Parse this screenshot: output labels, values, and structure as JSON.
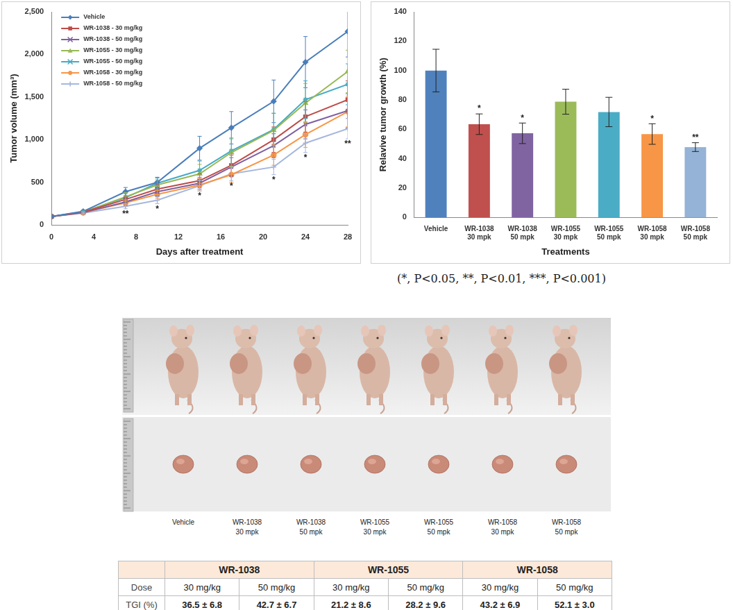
{
  "chart_data": [
    {
      "type": "line",
      "x_label": "Days after treatment",
      "y_label": "Tumor volume (mm³)",
      "x": [
        0,
        3,
        7,
        10,
        14,
        17,
        21,
        24,
        28
      ],
      "xlim": [
        0,
        28
      ],
      "xticks": [
        0,
        4,
        8,
        12,
        16,
        20,
        24,
        28
      ],
      "ylim": [
        0,
        2500
      ],
      "yticks": [
        0,
        500,
        {
          "value": 1000,
          "label": "1,000"
        },
        {
          "value": 1500,
          "label": "1,500"
        },
        {
          "value": 2000,
          "label": "2,000"
        },
        {
          "value": 2500,
          "label": "2,500"
        }
      ],
      "grid": false,
      "legend": "upper left",
      "series": [
        {
          "name": "Vehicle",
          "color": "#4a7ebb",
          "marker": "diamond",
          "values": [
            100,
            160,
            390,
            500,
            900,
            1140,
            1450,
            1910,
            2270
          ],
          "errors": [
            0,
            15,
            50,
            60,
            140,
            190,
            250,
            300,
            300
          ]
        },
        {
          "name": "WR-1038 - 30 mg/kg",
          "color": "#be4b48",
          "marker": "square",
          "values": [
            100,
            150,
            300,
            420,
            520,
            700,
            1000,
            1270,
            1470
          ],
          "errors": [
            0,
            10,
            40,
            50,
            80,
            120,
            150,
            180,
            220
          ]
        },
        {
          "name": "WR-1038 - 50 mg/kg",
          "color": "#7e60a0",
          "marker": "x",
          "values": [
            100,
            145,
            270,
            390,
            490,
            680,
            930,
            1180,
            1340
          ],
          "errors": [
            0,
            10,
            40,
            50,
            70,
            110,
            140,
            170,
            200
          ]
        },
        {
          "name": "WR-1055 - 30 mg/kg",
          "color": "#98b954",
          "marker": "triangle",
          "values": [
            100,
            150,
            330,
            470,
            600,
            850,
            1110,
            1430,
            1800
          ],
          "errors": [
            0,
            15,
            50,
            60,
            110,
            160,
            200,
            230,
            250
          ]
        },
        {
          "name": "WR-1055 - 50 mg/kg",
          "color": "#46aac5",
          "marker": "star",
          "values": [
            100,
            155,
            320,
            490,
            640,
            870,
            1120,
            1470,
            1650
          ],
          "errors": [
            0,
            15,
            50,
            60,
            110,
            150,
            190,
            220,
            240
          ]
        },
        {
          "name": "WR-1058 - 30 mg/kg",
          "color": "#f79646",
          "marker": "circle",
          "values": [
            100,
            145,
            260,
            360,
            470,
            590,
            820,
            1060,
            1330
          ],
          "errors": [
            0,
            10,
            35,
            45,
            70,
            90,
            120,
            150,
            180
          ]
        },
        {
          "name": "WR-1058 - 50 mg/kg",
          "color": "#a5b7de",
          "marker": "plus",
          "values": [
            100,
            140,
            220,
            290,
            460,
            600,
            680,
            960,
            1130
          ],
          "errors": [
            0,
            10,
            30,
            40,
            60,
            80,
            90,
            110,
            120
          ],
          "significance": [
            null,
            null,
            "**",
            "*",
            "*",
            "*",
            "*",
            "*",
            "**"
          ]
        }
      ]
    },
    {
      "type": "bar",
      "x_label": "Treatments",
      "y_label": "Relavive tumor growth (%)",
      "categories": [
        "Vehicle",
        "WR-1038 30 mpk",
        "WR-1038 50 mpk",
        "WR-1055 30 mpk",
        "WR-1055 50 mpk",
        "WR-1058 30 mpk",
        "WR-1058 50 mpk"
      ],
      "values": [
        100,
        63.5,
        57.3,
        78.8,
        71.8,
        56.8,
        47.9
      ],
      "errors": [
        14.5,
        7,
        7,
        8.5,
        10,
        7,
        3
      ],
      "significance": [
        null,
        "*",
        "*",
        null,
        null,
        "*",
        "**"
      ],
      "colors": [
        "#4f81bd",
        "#c0504d",
        "#8064a2",
        "#9bbb59",
        "#4bacc6",
        "#f79646",
        "#95b3d7"
      ],
      "ylim": [
        0,
        140
      ],
      "yticks": [
        0,
        20,
        40,
        60,
        80,
        100,
        120,
        140
      ],
      "grid": false
    }
  ],
  "significance_note": "(*, P<0.05, **, P<0.01, ***, P<0.001)",
  "photo_labels": [
    "Vehicle",
    "WR-1038 30 mpk",
    "WR-1038 50 mpk",
    "WR-1055 30 mpk",
    "WR-1055 50 mpk",
    "WR-1058 30 mpk",
    "WR-1058 50 mpk"
  ],
  "table": {
    "groups": [
      "WR-1038",
      "WR-1055",
      "WR-1058"
    ],
    "rows": [
      {
        "label": "Dose",
        "cells": [
          "30 mg/kg",
          "50 mg/kg",
          "30 mg/kg",
          "50 mg/kg",
          "30 mg/kg",
          "50 mg/kg"
        ]
      },
      {
        "label": "TGI (%)",
        "cells": [
          "36.5 ± 6.8",
          "42.7 ± 6.7",
          "21.2 ± 8.6",
          "28.2 ± 9.6",
          "43.2 ± 6.9",
          "52.1 ± 3.0"
        ]
      }
    ]
  }
}
